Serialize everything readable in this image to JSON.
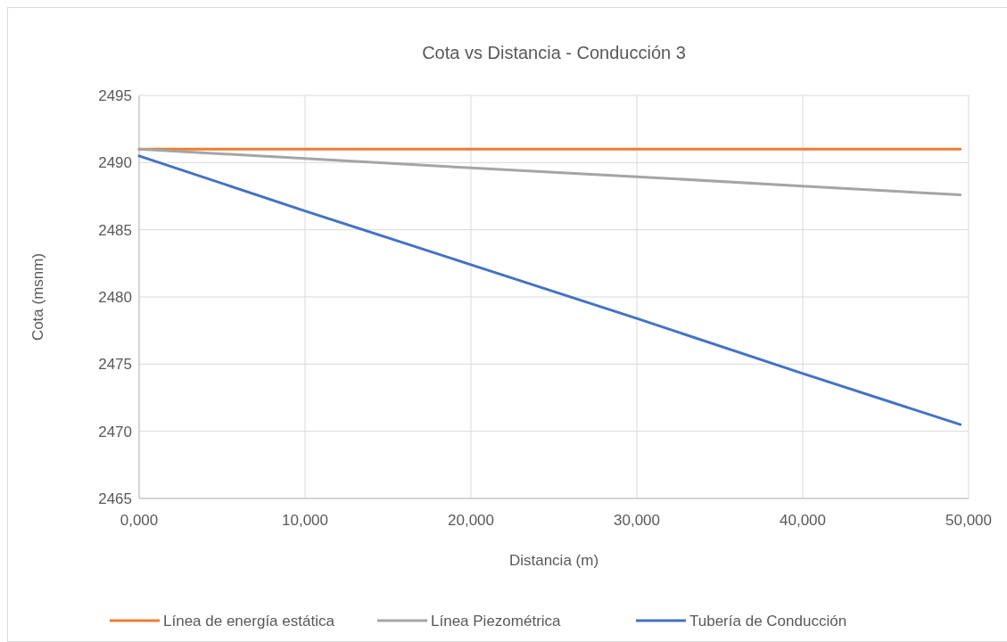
{
  "chart_data": {
    "type": "line",
    "title": "Cota vs Distancia - Conducción 3",
    "xlabel": "Distancia (m)",
    "ylabel": "Cota (msnm)",
    "x": [
      0,
      10000,
      20000,
      30000,
      40000,
      49500
    ],
    "series": [
      {
        "name": "Línea de energía estática",
        "color": "#ed7d31",
        "values": [
          2491,
          2491,
          2491,
          2491,
          2491,
          2491
        ]
      },
      {
        "name": "Línea Piezométrica",
        "color": "#a5a5a5",
        "values": [
          2491,
          2490.3,
          2489.6,
          2488.95,
          2488.25,
          2487.6
        ]
      },
      {
        "name": "Tubería de Conducción",
        "color": "#4472c4",
        "values": [
          2490.5,
          2486.4,
          2482.4,
          2478.4,
          2474.3,
          2470.5
        ]
      }
    ],
    "xlim": [
      0,
      50000
    ],
    "xticks": [
      {
        "value": 0,
        "label": "0,000"
      },
      {
        "value": 10000,
        "label": "10,000"
      },
      {
        "value": 20000,
        "label": "20,000"
      },
      {
        "value": 30000,
        "label": "30,000"
      },
      {
        "value": 40000,
        "label": "40,000"
      },
      {
        "value": 50000,
        "label": "50,000"
      }
    ],
    "ylim": [
      2465,
      2495
    ],
    "yticks": [
      2465,
      2470,
      2475,
      2480,
      2485,
      2490,
      2495
    ],
    "grid": true,
    "legend": "bottom",
    "marker": "none",
    "line_style": "solid"
  }
}
